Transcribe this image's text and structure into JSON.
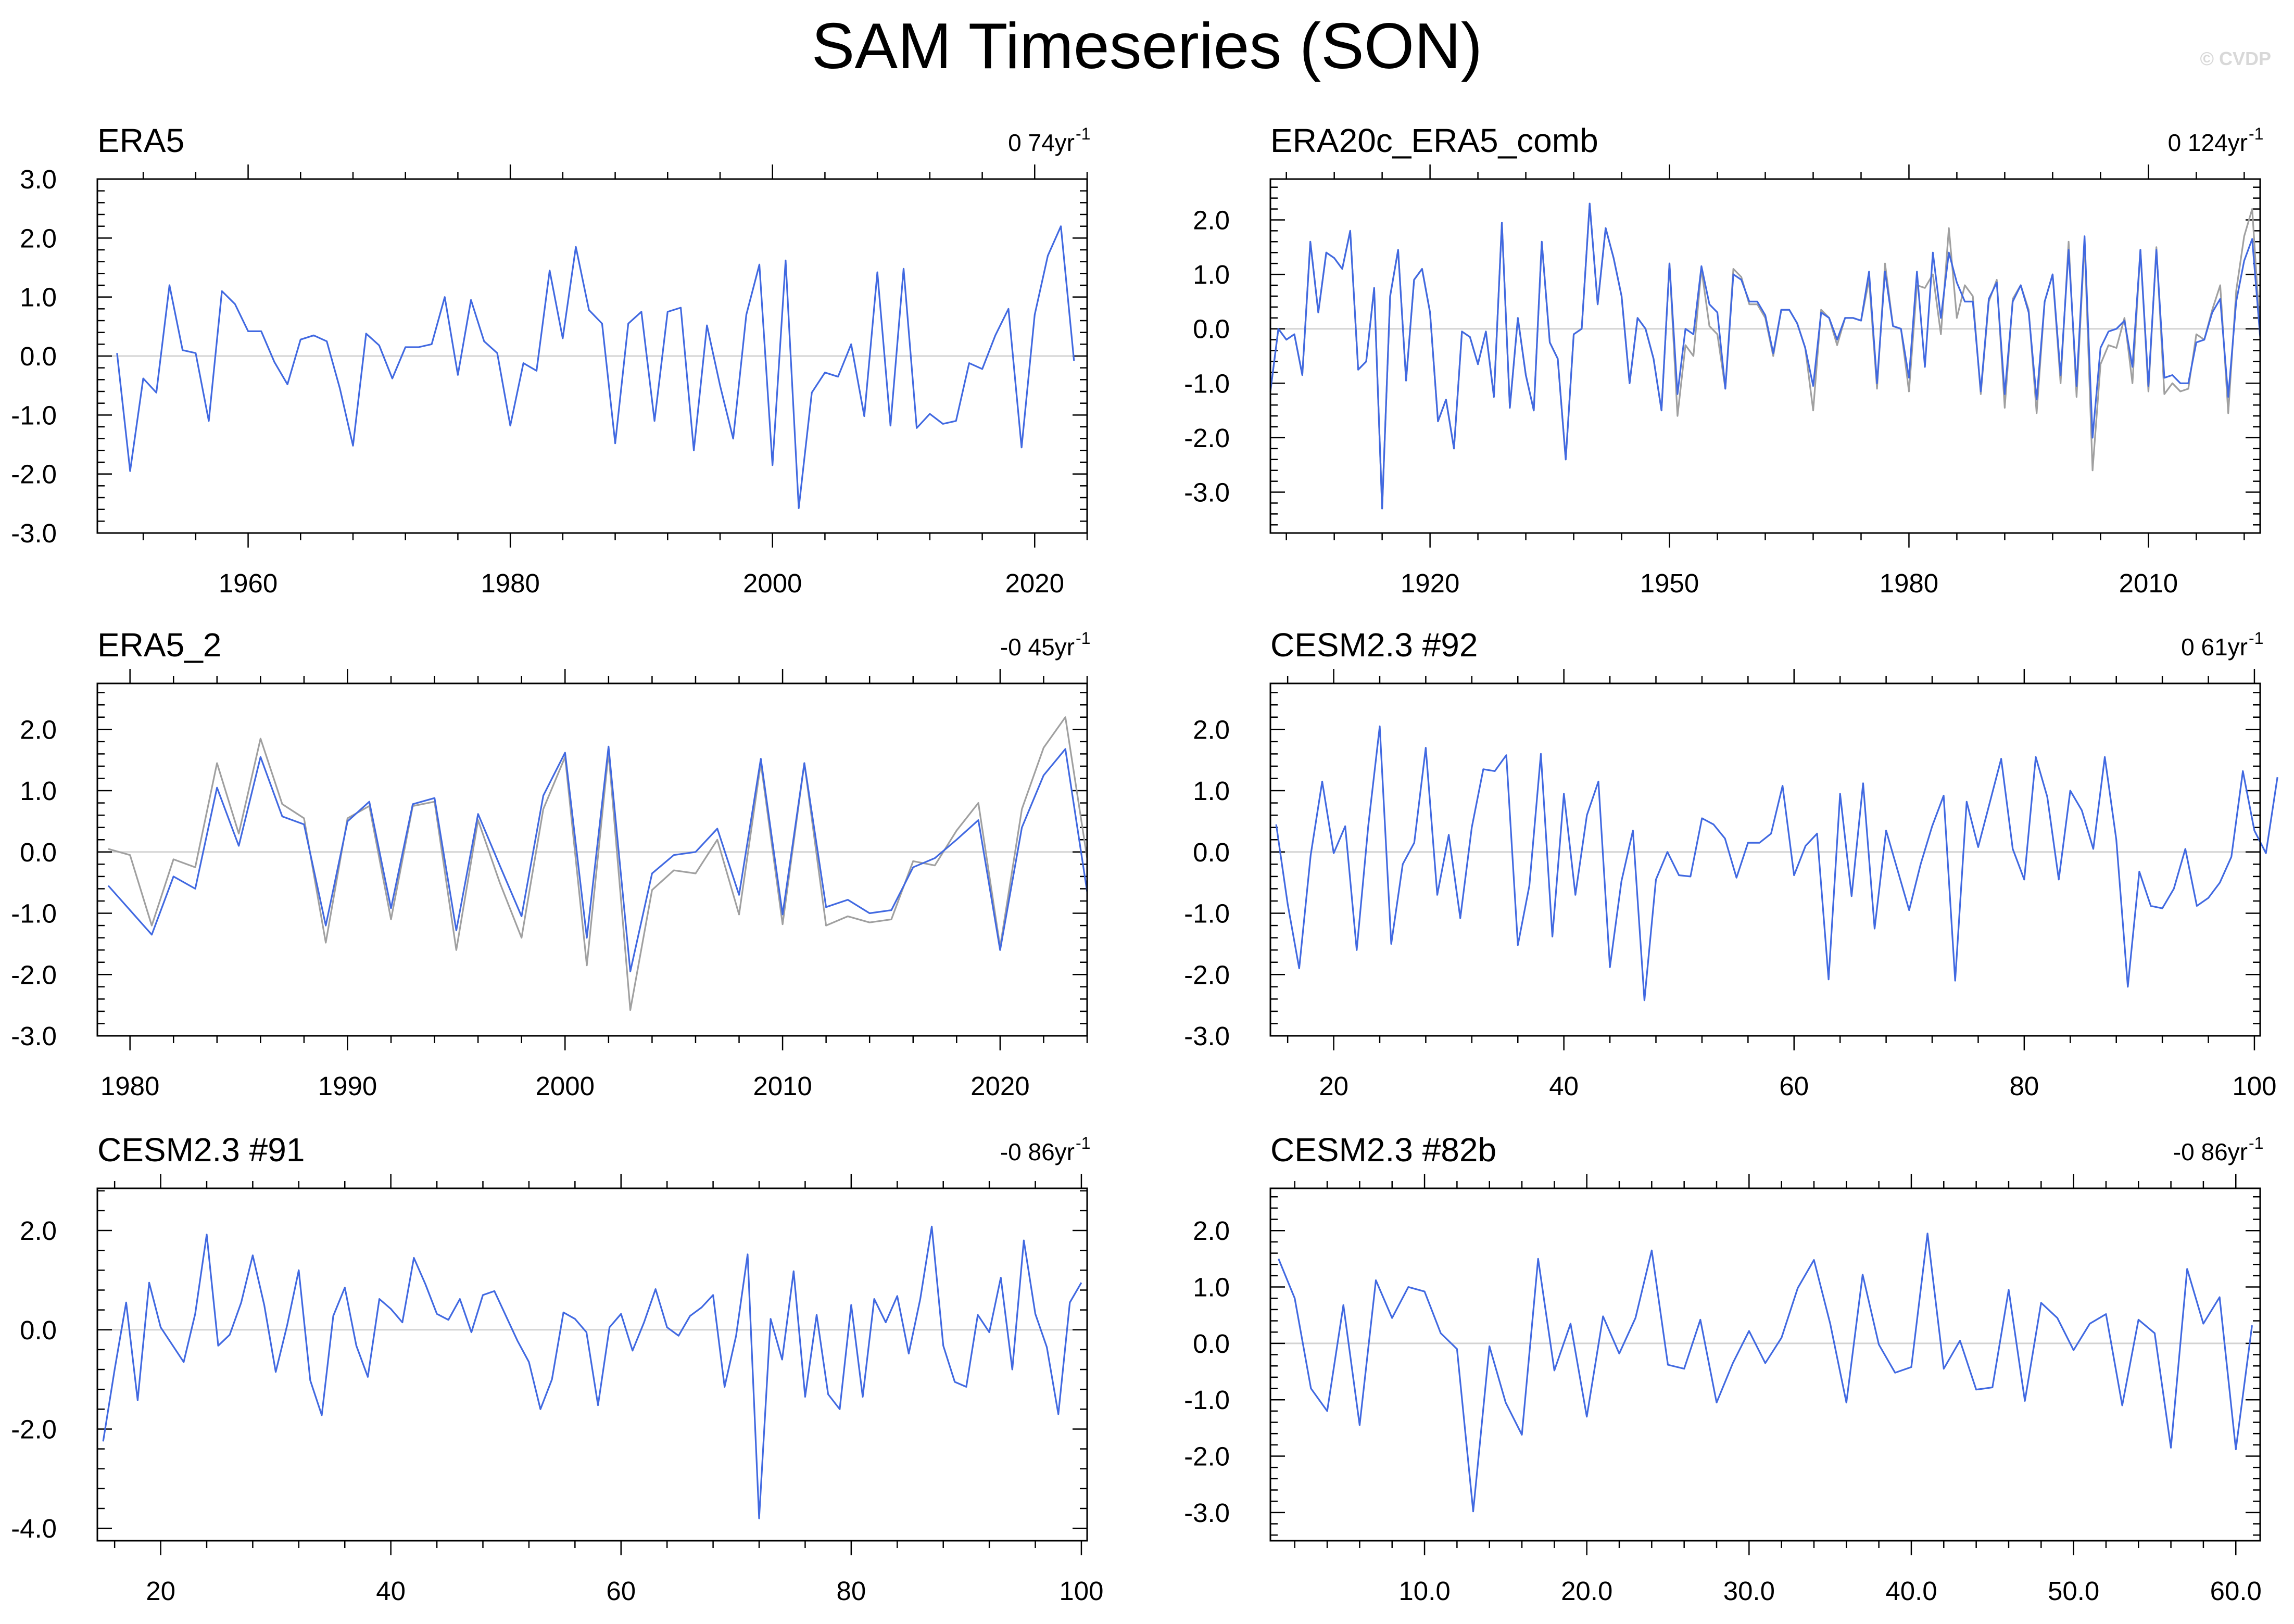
{
  "title": "SAM Timeseries (SON)",
  "watermark": "© CVDP",
  "colors": {
    "series_primary": "#4169e1",
    "series_secondary": "#a0a0a0",
    "axis": "#000000",
    "zero_line": "#d3d3d3"
  },
  "chart_data": [
    {
      "type": "line",
      "title": "ERA5",
      "trend": "0 74yr",
      "trend_unit_sup": "-1",
      "x_ticks": [
        1960,
        1980,
        2000,
        2020
      ],
      "y_ticks": [
        3.0,
        2.0,
        1.0,
        0.0,
        -1.0,
        -2.0,
        -3.0
      ],
      "xlim": [
        1948.5,
        2024
      ],
      "ylim": [
        -3.0,
        3.0
      ],
      "zero_line": true,
      "series": [
        {
          "x_start": 1950,
          "x_step": 1,
          "color": "#4169e1",
          "values": [
            0.05,
            -1.95,
            -0.38,
            -0.62,
            1.2,
            0.1,
            0.05,
            -1.1,
            1.1,
            0.88,
            0.42,
            0.42,
            -0.1,
            -0.48,
            0.28,
            0.35,
            0.25,
            -0.55,
            -1.52,
            0.38,
            0.18,
            -0.38,
            0.15,
            0.15,
            0.2,
            1.0,
            -0.32,
            0.95,
            0.25,
            0.05,
            -1.18,
            -0.12,
            -0.25,
            1.45,
            0.3,
            1.85,
            0.78,
            0.55,
            -1.48,
            0.55,
            0.75,
            -1.1,
            0.75,
            0.82,
            -1.6,
            0.52,
            -0.5,
            -1.4,
            0.7,
            1.55,
            -1.85,
            1.62,
            -2.58,
            -0.62,
            -0.28,
            -0.35,
            0.2,
            -1.02,
            1.42,
            -1.18,
            1.48,
            -1.22,
            -0.98,
            -1.15,
            -1.1,
            -0.12,
            -0.22,
            0.35,
            0.8,
            -1.55,
            0.7,
            1.7,
            2.2,
            -0.08
          ]
        }
      ]
    },
    {
      "type": "line",
      "title": "ERA20c_ERA5_comb",
      "trend": "0 124yr",
      "trend_unit_sup": "-1",
      "x_ticks": [
        1920,
        1950,
        1980,
        2010
      ],
      "y_ticks": [
        2.0,
        1.0,
        0.0,
        -1.0,
        -2.0,
        -3.0
      ],
      "xlim": [
        1900,
        2024
      ],
      "ylim": [
        -3.75,
        2.75
      ],
      "zero_line": true,
      "series": [
        {
          "x_start": 1900,
          "x_step": 1,
          "color": "#a0a0a0",
          "values": [
            -1.15,
            0.0,
            -0.2,
            -0.1,
            -0.85,
            1.6,
            0.3,
            1.4,
            1.3,
            1.1,
            1.8,
            -0.75,
            -0.6,
            0.75,
            -3.3,
            0.6,
            1.45,
            -0.95,
            0.9,
            1.1,
            0.3,
            -1.7,
            -1.3,
            -2.2,
            -0.05,
            -0.15,
            -0.65,
            -0.05,
            -1.25,
            1.95,
            -1.45,
            0.2,
            -0.85,
            -1.5,
            1.6,
            -0.25,
            -0.55,
            -2.4,
            -0.1,
            0.0,
            2.3,
            0.45,
            1.85,
            1.3,
            0.6,
            -1.0,
            0.2,
            0.0,
            -0.55,
            -1.5,
            1.2,
            -1.6,
            -0.3,
            -0.5,
            1.1,
            0.05,
            -0.1,
            -1.1,
            1.1,
            0.95,
            0.45,
            0.45,
            0.2,
            -0.5,
            0.35,
            0.35,
            0.1,
            -0.35,
            -1.5,
            0.35,
            0.2,
            -0.3,
            0.2,
            0.2,
            0.15,
            0.9,
            -1.1,
            1.2,
            0.05,
            0.0,
            -1.15,
            0.8,
            0.75,
            1.0,
            -0.1,
            1.85,
            0.2,
            0.8,
            0.6,
            -1.2,
            0.5,
            0.9,
            -1.45,
            0.55,
            0.8,
            0.35,
            -1.55,
            0.5,
            1.0,
            -1.0,
            1.6,
            -1.25,
            1.6,
            -2.6,
            -0.65,
            -0.3,
            -0.35,
            0.2,
            -1.0,
            1.45,
            -1.15,
            1.5,
            -1.2,
            -1.0,
            -1.15,
            -1.1,
            -0.1,
            -0.2,
            0.35,
            0.8,
            -1.55,
            0.7,
            1.7,
            2.2,
            -0.1
          ]
        },
        {
          "x_start": 1900,
          "x_step": 1,
          "color": "#4169e1",
          "values": [
            -1.15,
            0.0,
            -0.2,
            -0.1,
            -0.85,
            1.6,
            0.3,
            1.4,
            1.3,
            1.1,
            1.8,
            -0.75,
            -0.6,
            0.75,
            -3.3,
            0.6,
            1.45,
            -0.95,
            0.9,
            1.1,
            0.3,
            -1.7,
            -1.3,
            -2.2,
            -0.05,
            -0.15,
            -0.65,
            -0.05,
            -1.25,
            1.95,
            -1.45,
            0.2,
            -0.85,
            -1.5,
            1.6,
            -0.25,
            -0.55,
            -2.4,
            -0.1,
            0.0,
            2.3,
            0.45,
            1.85,
            1.3,
            0.6,
            -1.0,
            0.2,
            0.0,
            -0.55,
            -1.5,
            1.2,
            -1.2,
            0.0,
            -0.1,
            1.15,
            0.45,
            0.3,
            -1.1,
            1.0,
            0.9,
            0.5,
            0.5,
            0.25,
            -0.45,
            0.35,
            0.35,
            0.1,
            -0.35,
            -1.05,
            0.3,
            0.2,
            -0.2,
            0.2,
            0.2,
            0.15,
            1.05,
            -1.0,
            1.05,
            0.05,
            0.0,
            -0.9,
            1.05,
            -0.7,
            1.4,
            0.2,
            1.4,
            0.85,
            0.5,
            0.5,
            -1.15,
            0.55,
            0.85,
            -1.2,
            0.5,
            0.8,
            0.3,
            -1.3,
            0.5,
            1.0,
            -0.85,
            1.45,
            -1.05,
            1.7,
            -2.0,
            -0.35,
            -0.05,
            0.0,
            0.15,
            -0.7,
            1.45,
            -1.05,
            1.45,
            -0.9,
            -0.85,
            -1.0,
            -1.0,
            -0.25,
            -0.2,
            0.3,
            0.55,
            -1.25,
            0.5,
            1.25,
            1.65,
            -0.15
          ]
        }
      ]
    },
    {
      "type": "line",
      "title": "ERA5_2",
      "trend": "-0 45yr",
      "trend_unit_sup": "-1",
      "x_ticks": [
        1980,
        1990,
        2000,
        2010,
        2020
      ],
      "y_ticks": [
        2.0,
        1.0,
        0.0,
        -1.0,
        -2.0,
        -3.0
      ],
      "xlim": [
        1978.5,
        2024
      ],
      "ylim": [
        -3.0,
        2.75
      ],
      "zero_line": true,
      "series": [
        {
          "x_start": 1979,
          "x_step": 1,
          "color": "#a0a0a0",
          "values": [
            0.05,
            -0.05,
            -1.2,
            -0.12,
            -0.25,
            1.45,
            0.3,
            1.85,
            0.78,
            0.55,
            -1.48,
            0.55,
            0.75,
            -1.1,
            0.75,
            0.82,
            -1.6,
            0.52,
            -0.5,
            -1.4,
            0.7,
            1.55,
            -1.85,
            1.62,
            -2.58,
            -0.62,
            -0.3,
            -0.35,
            0.2,
            -1.02,
            1.45,
            -1.18,
            1.45,
            -1.2,
            -1.05,
            -1.15,
            -1.1,
            -0.15,
            -0.22,
            0.35,
            0.8,
            -1.55,
            0.7,
            1.7,
            2.2,
            -0.1
          ]
        },
        {
          "x_start": 1979,
          "x_step": 1,
          "color": "#4169e1",
          "values": [
            -0.55,
            -0.95,
            -1.35,
            -0.4,
            -0.6,
            1.05,
            0.1,
            1.55,
            0.58,
            0.45,
            -1.2,
            0.5,
            0.82,
            -0.92,
            0.78,
            0.88,
            -1.28,
            0.62,
            -0.22,
            -1.05,
            0.92,
            1.62,
            -1.4,
            1.72,
            -1.95,
            -0.35,
            -0.05,
            0.0,
            0.38,
            -0.7,
            1.52,
            -1.02,
            1.45,
            -0.9,
            -0.78,
            -1.0,
            -0.95,
            -0.25,
            -0.1,
            0.2,
            0.52,
            -1.6,
            0.4,
            1.25,
            1.68,
            -0.65
          ]
        }
      ]
    },
    {
      "type": "line",
      "title": "CESM2.3 #92",
      "trend": "0 61yr",
      "trend_unit_sup": "-1",
      "x_ticks": [
        20,
        40,
        60,
        80,
        100
      ],
      "y_ticks": [
        2.0,
        1.0,
        0.0,
        -1.0,
        -2.0,
        -3.0
      ],
      "xlim": [
        14.5,
        100.5
      ],
      "ylim": [
        -3.0,
        2.75
      ],
      "zero_line": true,
      "series": [
        {
          "x_start": 15,
          "x_step": 1,
          "color": "#4169e1",
          "values": [
            0.45,
            -0.85,
            -1.9,
            -0.05,
            1.15,
            -0.02,
            0.42,
            -1.6,
            0.42,
            2.05,
            -1.5,
            -0.2,
            0.15,
            1.7,
            -0.7,
            0.28,
            -1.08,
            0.4,
            1.35,
            1.32,
            1.58,
            -1.52,
            -0.55,
            1.6,
            -1.38,
            0.95,
            -0.7,
            0.6,
            1.15,
            -1.88,
            -0.48,
            0.35,
            -2.42,
            -0.45,
            0.0,
            -0.38,
            -0.4,
            0.55,
            0.45,
            0.22,
            -0.42,
            0.15,
            0.15,
            0.3,
            1.08,
            -0.38,
            0.1,
            0.3,
            -2.08,
            0.95,
            -0.72,
            1.12,
            -1.25,
            0.35,
            -0.3,
            -0.95,
            -0.2,
            0.42,
            0.92,
            -2.1,
            0.82,
            0.08,
            0.8,
            1.52,
            0.05,
            -0.45,
            1.55,
            0.9,
            -0.45,
            1.0,
            0.68,
            0.05,
            1.55,
            0.2,
            -2.2,
            -0.32,
            -0.88,
            -0.92,
            -0.6,
            0.05,
            -0.88,
            -0.75,
            -0.5,
            -0.08,
            1.32,
            0.35,
            -0.02,
            1.22
          ]
        }
      ]
    },
    {
      "type": "line",
      "title": "CESM2.3 #91",
      "trend": "-0 86yr",
      "trend_unit_sup": "-1",
      "x_ticks": [
        20,
        40,
        60,
        80,
        100
      ],
      "y_ticks": [
        2.0,
        0.0,
        -2.0,
        -4.0
      ],
      "xlim": [
        14.5,
        100.5
      ],
      "ylim": [
        -4.25,
        2.85
      ],
      "zero_line": true,
      "series": [
        {
          "x_start": 15,
          "x_step": 1,
          "color": "#4169e1",
          "values": [
            -2.25,
            -0.8,
            0.55,
            -1.42,
            0.95,
            0.05,
            -0.3,
            -0.65,
            0.32,
            1.92,
            -0.32,
            -0.1,
            0.55,
            1.5,
            0.5,
            -0.85,
            0.1,
            1.2,
            -1.02,
            -1.72,
            0.28,
            0.85,
            -0.32,
            -0.95,
            0.62,
            0.42,
            0.15,
            1.45,
            0.92,
            0.32,
            0.2,
            0.62,
            -0.05,
            0.7,
            0.78,
            0.28,
            -0.22,
            -0.65,
            -1.6,
            -1.0,
            0.35,
            0.22,
            -0.05,
            -1.52,
            0.05,
            0.32,
            -0.42,
            0.15,
            0.82,
            0.05,
            -0.12,
            0.28,
            0.45,
            0.7,
            -1.15,
            -0.12,
            1.52,
            -3.8,
            0.22,
            -0.6,
            1.18,
            -1.35,
            0.3,
            -1.3,
            -1.6,
            0.5,
            -1.35,
            0.62,
            0.15,
            0.68,
            -0.48,
            0.62,
            2.08,
            -0.32,
            -1.05,
            -1.15,
            0.3,
            -0.05,
            1.05,
            -0.8,
            1.8,
            0.32,
            -0.35,
            -1.7,
            0.55,
            0.95
          ]
        }
      ]
    },
    {
      "type": "line",
      "title": "CESM2.3 #82b",
      "trend": "-0 86yr",
      "trend_unit_sup": "-1",
      "x_ticks": [
        10.0,
        20.0,
        30.0,
        40.0,
        50.0,
        60.0
      ],
      "x_tick_labels": [
        "10.0",
        "20.0",
        "30.0",
        "40.0",
        "50.0",
        "60.0"
      ],
      "y_ticks": [
        2.0,
        1.0,
        0.0,
        -1.0,
        -2.0,
        -3.0
      ],
      "xlim": [
        0.5,
        61.5
      ],
      "ylim": [
        -3.5,
        2.75
      ],
      "zero_line": true,
      "series": [
        {
          "x_start": 1,
          "x_step": 1,
          "color": "#4169e1",
          "values": [
            1.5,
            0.8,
            -0.8,
            -1.2,
            0.68,
            -1.45,
            1.12,
            0.45,
            1.0,
            0.92,
            0.18,
            -0.1,
            -2.98,
            -0.05,
            -1.05,
            -1.62,
            1.5,
            -0.48,
            0.35,
            -1.3,
            0.48,
            -0.18,
            0.45,
            1.65,
            -0.38,
            -0.45,
            0.42,
            -1.05,
            -0.35,
            0.22,
            -0.35,
            0.1,
            0.98,
            1.48,
            0.35,
            -1.05,
            1.22,
            -0.02,
            -0.52,
            -0.42,
            1.95,
            -0.45,
            0.05,
            -0.82,
            -0.78,
            0.95,
            -1.02,
            0.72,
            0.45,
            -0.12,
            0.35,
            0.52,
            -1.1,
            0.42,
            0.18,
            -1.85,
            1.32,
            0.35,
            0.82,
            -1.88,
            0.32
          ]
        }
      ]
    }
  ]
}
